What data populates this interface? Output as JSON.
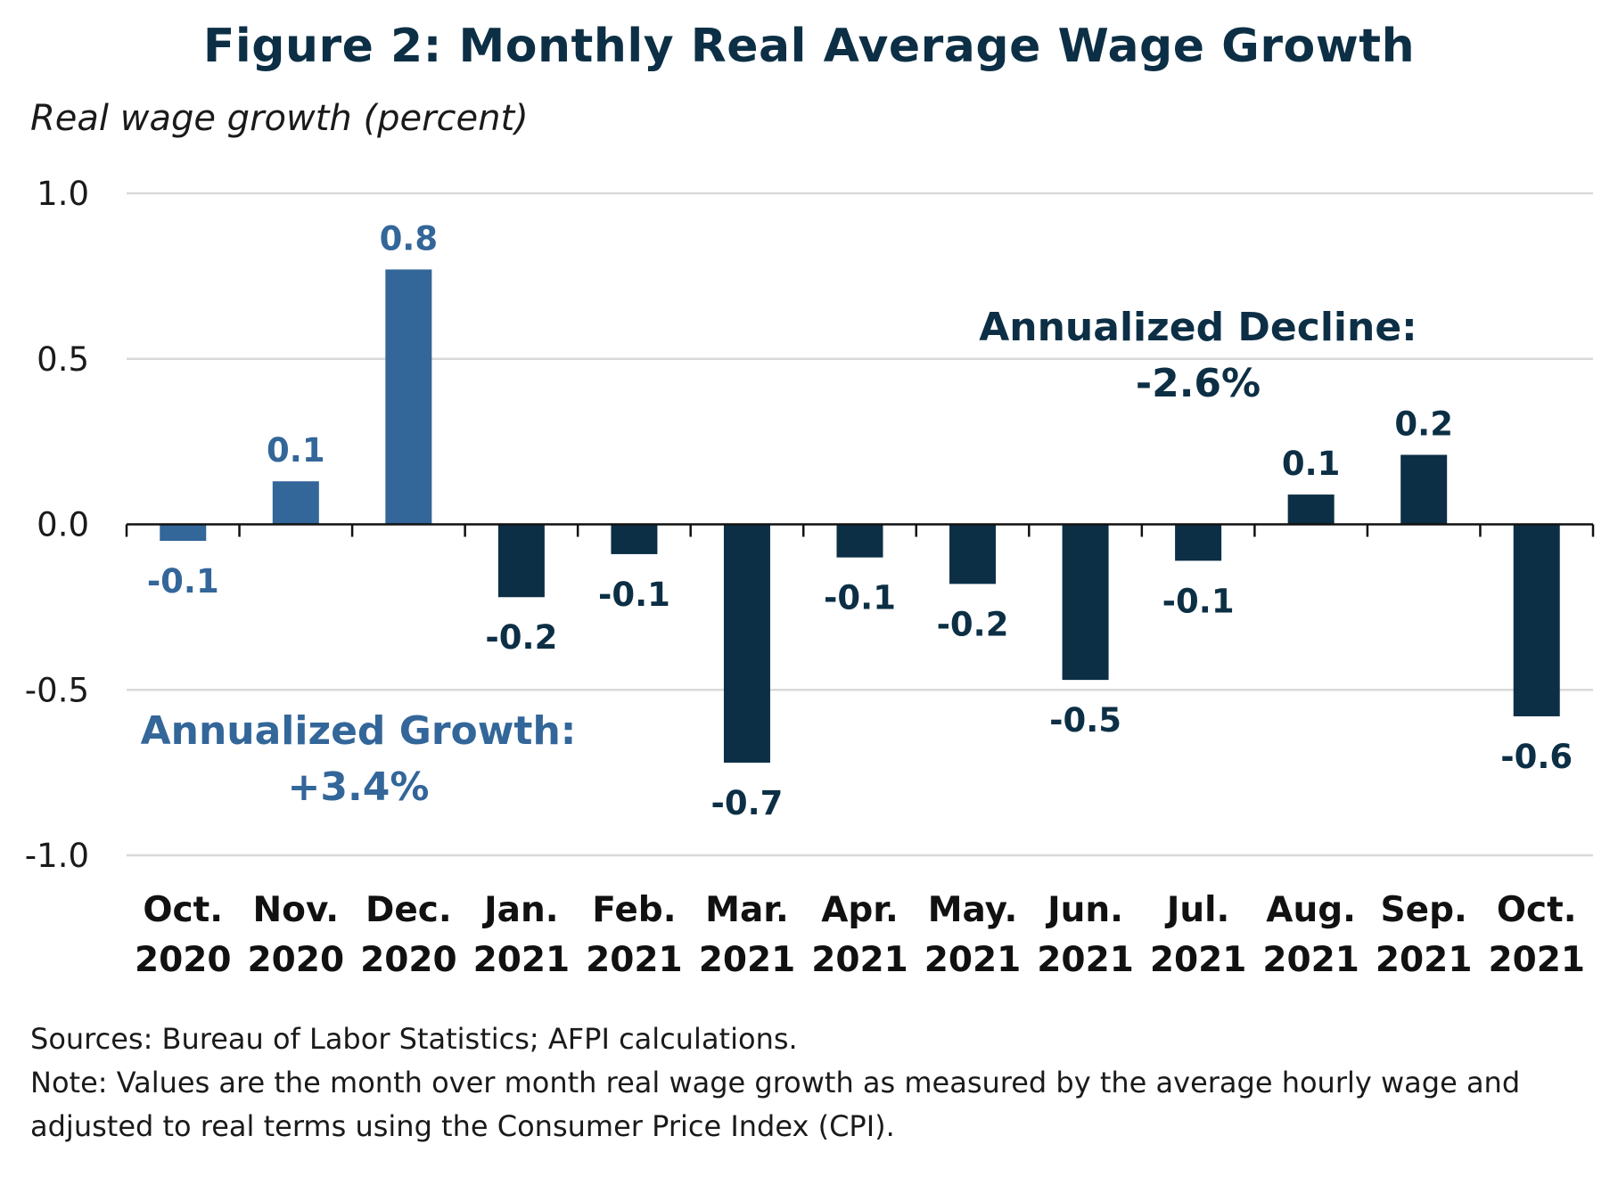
{
  "chart_data": {
    "type": "bar",
    "title": "Figure 2: Monthly Real Average Wage Growth",
    "ylabel": "Real wage growth (percent)",
    "xlabel": "",
    "ylim": [
      -1.0,
      1.0
    ],
    "yticks": [
      "1.0",
      "0.5",
      "0.0",
      "-0.5",
      "-1.0"
    ],
    "ytick_values": [
      1.0,
      0.5,
      0.0,
      -0.5,
      -1.0
    ],
    "grid": true,
    "categories": [
      [
        "Oct.",
        "2020"
      ],
      [
        "Nov.",
        "2020"
      ],
      [
        "Dec.",
        "2020"
      ],
      [
        "Jan.",
        "2021"
      ],
      [
        "Feb.",
        "2021"
      ],
      [
        "Mar.",
        "2021"
      ],
      [
        "Apr.",
        "2021"
      ],
      [
        "May.",
        "2021"
      ],
      [
        "Jun.",
        "2021"
      ],
      [
        "Jul.",
        "2021"
      ],
      [
        "Aug.",
        "2021"
      ],
      [
        "Sep.",
        "2021"
      ],
      [
        "Oct.",
        "2021"
      ]
    ],
    "values": [
      -0.05,
      0.13,
      0.77,
      -0.22,
      -0.09,
      -0.72,
      -0.1,
      -0.18,
      -0.47,
      -0.11,
      0.09,
      0.21,
      -0.58
    ],
    "data_labels": [
      "-0.1",
      "0.1",
      "0.8",
      "-0.2",
      "-0.1",
      "-0.7",
      "-0.1",
      "-0.2",
      "-0.5",
      "-0.1",
      "0.1",
      "0.2",
      "-0.6"
    ],
    "bar_groups": [
      "2020",
      "2020",
      "2020",
      "2021",
      "2021",
      "2021",
      "2021",
      "2021",
      "2021",
      "2021",
      "2021",
      "2021",
      "2021"
    ],
    "colors": {
      "2020": "#336699",
      "2021": "#0c2f45",
      "title": "#0c2f45",
      "grid": "#d9d9d9"
    },
    "annotations": [
      {
        "text": "Annualized Growth:",
        "color": "#336699"
      },
      {
        "text": "+3.4%",
        "color": "#336699"
      },
      {
        "text": "Annualized Decline:",
        "color": "#0c2f45"
      },
      {
        "text": "-2.6%",
        "color": "#0c2f45"
      }
    ]
  },
  "footnotes": {
    "sources": "Sources: Bureau of Labor Statistics; AFPI calculations.",
    "note_line1": "Note: Values are the month over month real wage growth as measured by the average hourly wage and",
    "note_line2": "adjusted to real terms using the Consumer Price Index (CPI)."
  }
}
